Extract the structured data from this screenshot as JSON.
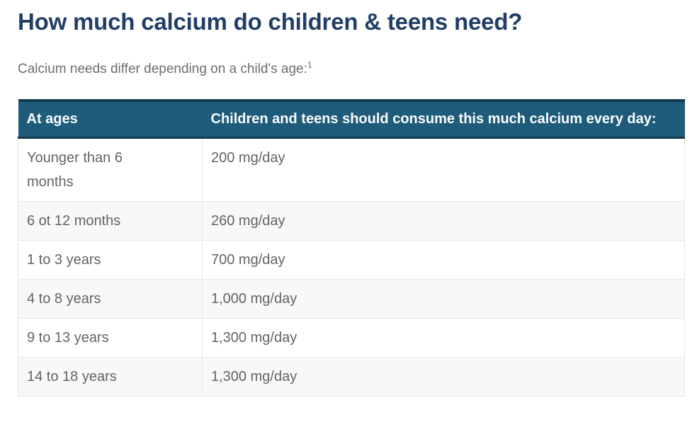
{
  "page": {
    "title": "How much calcium do children & teens need?",
    "subtitle": "Calcium needs differ depending on a child's age:",
    "subtitle_superscript": "1"
  },
  "table": {
    "columns": {
      "ages": "At ages",
      "amount": "Children and teens should consume this much calcium every day:"
    },
    "rows": [
      {
        "age": "Younger than 6 months",
        "amount": "200 mg/day"
      },
      {
        "age": "6 ot 12 months",
        "amount": "260 mg/day"
      },
      {
        "age": "1 to 3 years",
        "amount": "700 mg/day"
      },
      {
        "age": "4 to 8 years",
        "amount": "1,000 mg/day"
      },
      {
        "age": "9 to 13 years",
        "amount": "1,300 mg/day"
      },
      {
        "age": "14 to 18 years",
        "amount": "1,300 mg/day"
      }
    ]
  },
  "colors": {
    "title": "#223e66",
    "subtitle_text": "#6e6e6e",
    "header_bg": "#1f5b7a",
    "header_border": "#143c50",
    "header_text": "#fafdfe",
    "cell_text": "#646464",
    "row_alt_bg": "#f8f8f8",
    "cell_border": "#e6e6e6"
  }
}
